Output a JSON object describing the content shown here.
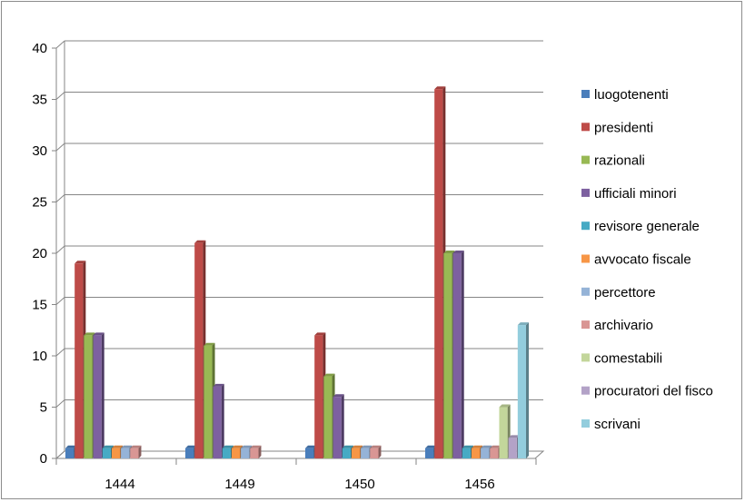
{
  "chart_data": {
    "type": "bar",
    "title": "",
    "xlabel": "",
    "ylabel": "",
    "ylim": [
      0,
      40
    ],
    "yticks": [
      0,
      5,
      10,
      15,
      20,
      25,
      30,
      35,
      40
    ],
    "grid": true,
    "legend_position": "right",
    "categories": [
      "1444",
      "1449",
      "1450",
      "1456"
    ],
    "series": [
      {
        "name": "luogotenenti",
        "color": "#4a7ebb",
        "values": [
          1,
          1,
          1,
          1
        ]
      },
      {
        "name": "presidenti",
        "color": "#be4b48",
        "values": [
          19,
          21,
          12,
          36
        ]
      },
      {
        "name": "razionali",
        "color": "#98b954",
        "values": [
          12,
          11,
          8,
          20
        ]
      },
      {
        "name": "ufficiali minori",
        "color": "#7d60a0",
        "values": [
          12,
          7,
          6,
          20
        ]
      },
      {
        "name": "revisore generale",
        "color": "#46aac4",
        "values": [
          1,
          1,
          1,
          1
        ]
      },
      {
        "name": "avvocato fiscale",
        "color": "#f79646",
        "values": [
          1,
          1,
          1,
          1
        ]
      },
      {
        "name": "percettore",
        "color": "#95b3d7",
        "values": [
          1,
          1,
          1,
          1
        ]
      },
      {
        "name": "archivario",
        "color": "#d99694",
        "values": [
          1,
          1,
          1,
          1
        ]
      },
      {
        "name": "comestabili",
        "color": "#c3d69b",
        "values": [
          0,
          0,
          0,
          5
        ]
      },
      {
        "name": "procuratori del fisco",
        "color": "#b3a2c7",
        "values": [
          0,
          0,
          0,
          2
        ]
      },
      {
        "name": "scrivani",
        "color": "#93cddd",
        "values": [
          0,
          0,
          0,
          13
        ]
      }
    ]
  }
}
